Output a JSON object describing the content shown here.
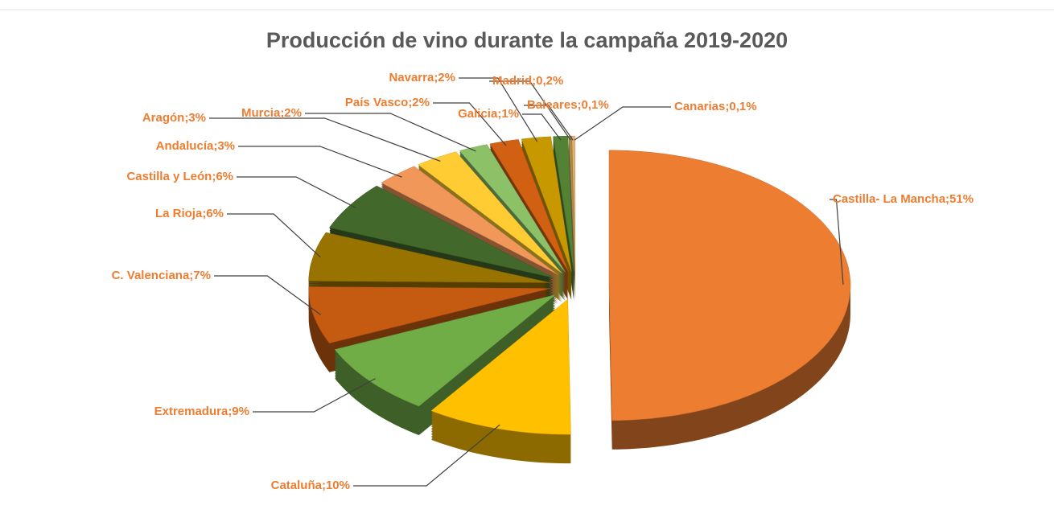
{
  "chart_data": {
    "type": "pie3d",
    "title": "Producción de vino durante la campaña 2019-2020",
    "value_labels": [
      "Castilla- La Mancha;51%",
      "Cataluña;10%",
      "Extremadura;9%",
      "C. Valenciana;7%",
      "La Rioja;6%",
      "Castilla y León;6%",
      "Andalucía;3%",
      "Aragón;3%",
      "Murcia;2%",
      "País Vasco;2%",
      "Navarra;2%",
      "Galicia;1%",
      "Madrid;0,2%",
      "Baleares;0,1%",
      "Canarias;0,1%"
    ],
    "values": [
      51,
      10,
      9,
      7,
      6,
      6,
      3,
      3,
      2,
      2,
      2,
      1,
      0.2,
      0.1,
      0.1
    ],
    "colors": [
      "#ed7d31",
      "#ffc000",
      "#70ad47",
      "#c55a11",
      "#997300",
      "#43682b",
      "#f1975a",
      "#ffcd33",
      "#8cc168",
      "#d26012",
      "#c89800",
      "#548235",
      "#b08a4a",
      "#e0c070",
      "#f4b183"
    ]
  }
}
